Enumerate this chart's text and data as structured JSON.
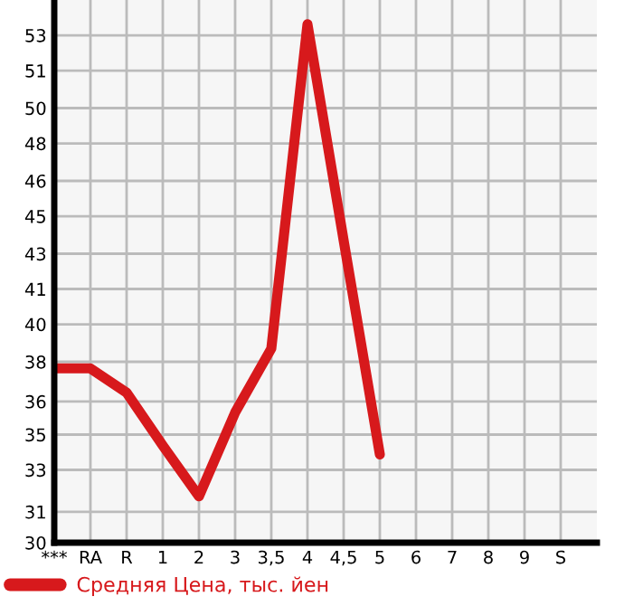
{
  "chart_data": {
    "type": "line",
    "categories": [
      "***",
      "RA",
      "R",
      "1",
      "2",
      "3",
      "3,5",
      "4",
      "4,5",
      "5",
      "6",
      "7",
      "8",
      "9",
      "S"
    ],
    "series": [
      {
        "name": "Средняя Цена, тыс. йен",
        "color": "#d7191c",
        "values": [
          37.9,
          37.9,
          36.8,
          34.4,
          32.1,
          35.9,
          38.8,
          53.5,
          43.7,
          34.0,
          null,
          null,
          null,
          null,
          null
        ]
      }
    ],
    "ylim": [
      30,
      54.6
    ],
    "yticks": [
      30,
      {
        "value": 31.4,
        "label": "31"
      },
      {
        "value": 33.3,
        "label": "33"
      },
      {
        "value": 34.9,
        "label": "35"
      },
      {
        "value": 36.4,
        "label": "36"
      },
      {
        "value": 38.2,
        "label": "38"
      },
      {
        "value": 39.9,
        "label": "40"
      },
      {
        "value": 41.5,
        "label": "41"
      },
      {
        "value": 43.1,
        "label": "43"
      },
      {
        "value": 44.8,
        "label": "45"
      },
      {
        "value": 46.4,
        "label": "46"
      },
      {
        "value": 48.1,
        "label": "48"
      },
      {
        "value": 49.7,
        "label": "50"
      },
      {
        "value": 51.4,
        "label": "51"
      },
      53
    ],
    "grid": true,
    "legend": "bottom",
    "marker": "none",
    "line_style": "solid"
  }
}
